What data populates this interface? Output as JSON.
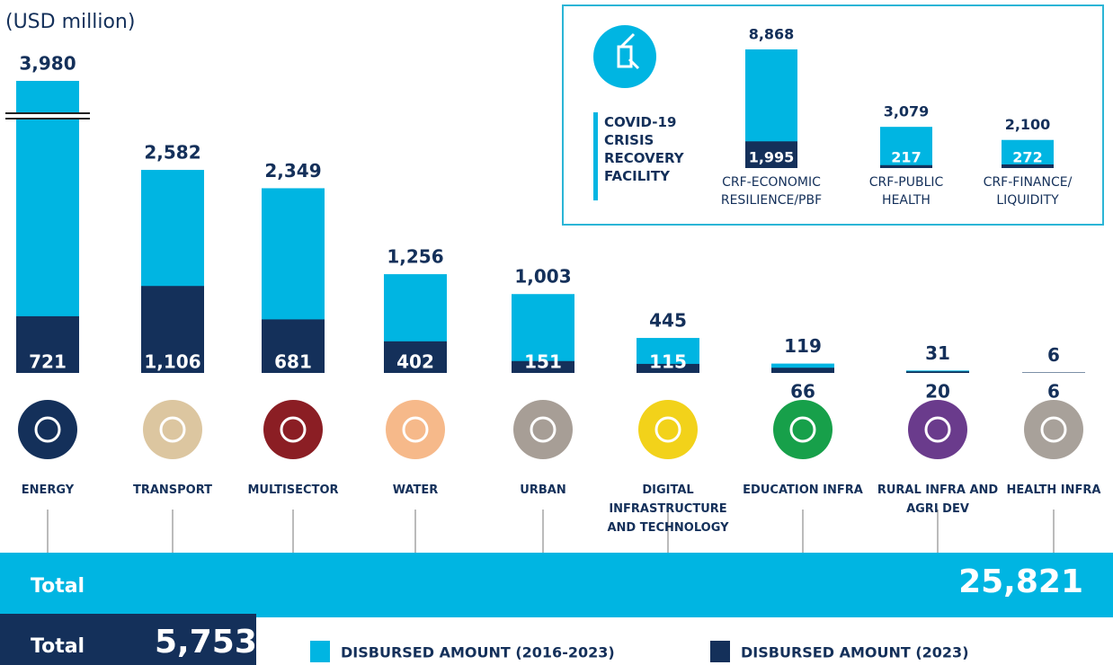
{
  "chart_data": [
    {
      "type": "bar",
      "subtitle": "(USD million)",
      "categories": [
        "ENERGY",
        "TRANSPORT",
        "MULTISECTOR",
        "WATER",
        "URBAN",
        "DIGITAL INFRASTRUCTURE AND TECHNOLOGY",
        "EDUCATION INFRA",
        "RURAL INFRA AND AGRI DEV",
        "HEALTH INFRA"
      ],
      "series": [
        {
          "name": "DISBURSED AMOUNT (2016-2023)",
          "color": "#00b5e2",
          "values": [
            3980,
            2582,
            2349,
            1256,
            1003,
            445,
            119,
            31,
            6
          ],
          "value_labels": [
            "3,980",
            "2,582",
            "2,349",
            "1,256",
            "1,003",
            "445",
            "119",
            "31",
            "6"
          ]
        },
        {
          "name": "DISBURSED AMOUNT (2023)",
          "color": "#14305a",
          "values": [
            721,
            1106,
            681,
            402,
            151,
            115,
            66,
            20,
            6
          ],
          "value_labels": [
            "721",
            "1,106",
            "681",
            "402",
            "151",
            "115",
            "66",
            "20",
            "6"
          ]
        }
      ],
      "ylim": [
        0,
        2600
      ]
    },
    {
      "type": "bar",
      "title": "COVID-19 CRISIS RECOVERY FACILITY",
      "categories": [
        "CRF-ECONOMIC RESILIENCE/PBF",
        "CRF-PUBLIC HEALTH",
        "CRF-FINANCE/ LIQUIDITY"
      ],
      "series": [
        {
          "name": "DISBURSED AMOUNT (2016-2023)",
          "color": "#00b5e2",
          "values": [
            8868,
            3079,
            2100
          ],
          "value_labels": [
            "8,868",
            "3,079",
            "2,100"
          ]
        },
        {
          "name": "DISBURSED AMOUNT (2023)",
          "color": "#14305a",
          "values": [
            1995,
            217,
            272
          ],
          "value_labels": [
            "1,995",
            "217",
            "272"
          ]
        }
      ],
      "ylim": [
        0,
        9000
      ]
    }
  ],
  "totals": {
    "overall": {
      "label": "Total",
      "value": "25,821"
    },
    "year": {
      "label": "Total",
      "value": "5,753"
    }
  }
}
